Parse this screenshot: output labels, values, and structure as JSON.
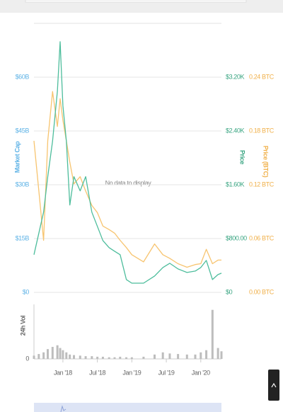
{
  "chart_data": {
    "type": "line",
    "annotation": "No data to display",
    "x": [
      2017.58,
      2017.65,
      2017.72,
      2017.78,
      2017.85,
      2017.92,
      2017.96,
      2018.0,
      2018.05,
      2018.1,
      2018.16,
      2018.25,
      2018.33,
      2018.42,
      2018.5,
      2018.58,
      2018.67,
      2018.75,
      2018.83,
      2018.92,
      2019.0,
      2019.17,
      2019.33,
      2019.45,
      2019.55,
      2019.67,
      2019.8,
      2019.92,
      2020.0,
      2020.08,
      2020.17,
      2020.25,
      2020.3
    ],
    "xlim": [
      2017.58,
      2020.3
    ],
    "xticks": [
      {
        "value": 2018.0,
        "label": "Jan '18"
      },
      {
        "value": 2018.5,
        "label": "Jul '18"
      },
      {
        "value": 2019.0,
        "label": "Jan '19"
      },
      {
        "value": 2019.5,
        "label": "Jul '19"
      },
      {
        "value": 2020.0,
        "label": "Jan '20"
      }
    ],
    "ylabel": "Market Cap",
    "ylim": [
      0,
      75000000000
    ],
    "yticks": [
      {
        "value": 0,
        "label": "$0"
      },
      {
        "value": 15000000000,
        "label": "$15B"
      },
      {
        "value": 30000000000,
        "label": "$30B"
      },
      {
        "value": 45000000000,
        "label": "$45B"
      },
      {
        "value": 60000000000,
        "label": "$60B"
      }
    ],
    "y2label": "Price",
    "y2lim": [
      0,
      4000
    ],
    "y2ticks": [
      {
        "value": 0,
        "label": "$0"
      },
      {
        "value": 800,
        "label": "$800.00"
      },
      {
        "value": 1600,
        "label": "$1.60K"
      },
      {
        "value": 2400,
        "label": "$2.40K"
      },
      {
        "value": 3200,
        "label": "$3.20K"
      }
    ],
    "y3label": "Price (BTC)",
    "y3lim": [
      0,
      0.3
    ],
    "y3ticks": [
      {
        "value": 0,
        "label": "0.00 BTC"
      },
      {
        "value": 0.06,
        "label": "0.06 BTC"
      },
      {
        "value": 0.12,
        "label": "0.12 BTC"
      },
      {
        "value": 0.18,
        "label": "0.18 BTC"
      },
      {
        "value": 0.24,
        "label": "0.24 BTC"
      }
    ],
    "grid": true,
    "series": [
      {
        "color": "#4dbd9c",
        "axis": "y2",
        "values": [
          560,
          876,
          1193,
          1721,
          2249,
          2988,
          3727,
          2777,
          2249,
          1299,
          1721,
          1510,
          1721,
          1193,
          982,
          771,
          665,
          612,
          560,
          190,
          137,
          137,
          243,
          370,
          433,
          348,
          296,
          317,
          370,
          475,
          190,
          264,
          285
        ]
      },
      {
        "color": "#f7c46f",
        "axis": "y3",
        "values": [
          0.169,
          0.114,
          0.058,
          0.169,
          0.224,
          0.185,
          0.216,
          0.192,
          0.169,
          0.145,
          0.121,
          0.129,
          0.113,
          0.097,
          0.089,
          0.074,
          0.07,
          0.066,
          0.058,
          0.05,
          0.042,
          0.034,
          0.054,
          0.042,
          0.038,
          0.032,
          0.028,
          0.031,
          0.032,
          0.048,
          0.032,
          0.036,
          0.036
        ]
      }
    ],
    "volume": {
      "label": "24h Vol",
      "color": "#bdbdbd",
      "ylim": [
        0,
        100
      ],
      "yticks": [
        0
      ],
      "values": [
        6,
        9,
        12,
        18,
        22,
        25,
        20,
        16,
        12,
        8,
        7,
        6,
        5,
        5,
        4,
        4,
        3,
        3,
        4,
        3,
        3,
        4,
        8,
        12,
        10,
        9,
        8,
        8,
        12,
        16,
        90,
        20,
        14
      ]
    }
  }
}
